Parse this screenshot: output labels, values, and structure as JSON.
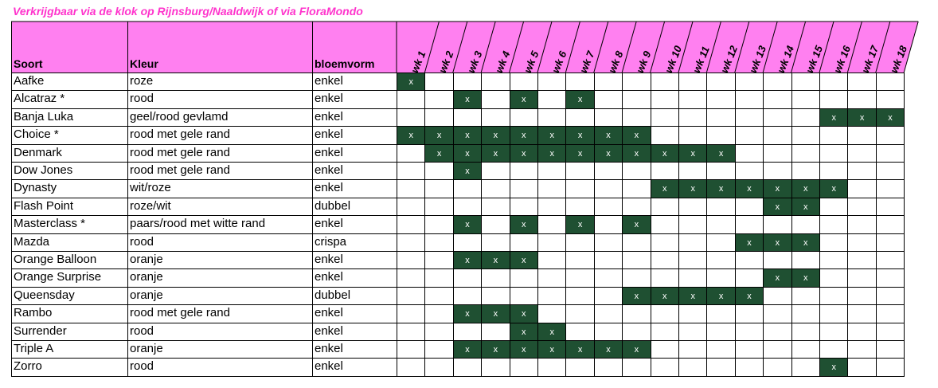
{
  "title": "Verkrijgbaar via de klok op Rijnsburg/Naaldwijk of via FloraMondo",
  "columns": {
    "soort": "Soort",
    "kleur": "Kleur",
    "bloemvorm": "bloemvorm"
  },
  "weeks": [
    "wk 1",
    "wk 2",
    "wk 3",
    "wk 4",
    "wk 5",
    "wk 6",
    "wk 7",
    "wk 8",
    "wk 9",
    "wk 10",
    "wk 11",
    "wk 12",
    "wk 13",
    "wk 14",
    "wk 15",
    "wk 16",
    "wk 17",
    "wk 18"
  ],
  "mark_symbol": "x",
  "colors": {
    "header_bg": "#ff80f0",
    "title": "#ff33cc",
    "mark_bg": "#1f5032",
    "mark_text": "#ffffff"
  },
  "rows": [
    {
      "soort": "Aafke",
      "kleur": "roze",
      "bloemvorm": "enkel",
      "weeks": [
        1
      ]
    },
    {
      "soort": "Alcatraz *",
      "kleur": "rood",
      "bloemvorm": "enkel",
      "weeks": [
        3,
        5,
        7
      ]
    },
    {
      "soort": "Banja Luka",
      "kleur": "geel/rood gevlamd",
      "bloemvorm": "enkel",
      "weeks": [
        16,
        17,
        18
      ]
    },
    {
      "soort": "Choice *",
      "kleur": "rood met gele rand",
      "bloemvorm": "enkel",
      "weeks": [
        1,
        2,
        3,
        4,
        5,
        6,
        7,
        8,
        9
      ]
    },
    {
      "soort": "Denmark",
      "kleur": "rood met gele rand",
      "bloemvorm": "enkel",
      "weeks": [
        2,
        3,
        4,
        5,
        6,
        7,
        8,
        9,
        10,
        11,
        12
      ]
    },
    {
      "soort": "Dow Jones",
      "kleur": "rood met gele rand",
      "bloemvorm": "enkel",
      "weeks": [
        3
      ]
    },
    {
      "soort": "Dynasty",
      "kleur": "wit/roze",
      "bloemvorm": "enkel",
      "weeks": [
        10,
        11,
        12,
        13,
        14,
        15,
        16
      ]
    },
    {
      "soort": "Flash Point",
      "kleur": "roze/wit",
      "bloemvorm": "dubbel",
      "weeks": [
        14,
        15
      ]
    },
    {
      "soort": "Masterclass *",
      "kleur": "paars/rood met witte rand",
      "bloemvorm": "enkel",
      "weeks": [
        3,
        5,
        7,
        9
      ]
    },
    {
      "soort": "Mazda",
      "kleur": "rood",
      "bloemvorm": "crispa",
      "weeks": [
        13,
        14,
        15
      ]
    },
    {
      "soort": "Orange Balloon",
      "kleur": "oranje",
      "bloemvorm": "enkel",
      "weeks": [
        3,
        4,
        5
      ]
    },
    {
      "soort": "Orange Surprise",
      "kleur": "oranje",
      "bloemvorm": "enkel",
      "weeks": [
        14,
        15
      ]
    },
    {
      "soort": "Queensday",
      "kleur": "oranje",
      "bloemvorm": "dubbel",
      "weeks": [
        9,
        10,
        11,
        12,
        13
      ]
    },
    {
      "soort": "Rambo",
      "kleur": "rood met gele rand",
      "bloemvorm": "enkel",
      "weeks": [
        3,
        4,
        5
      ]
    },
    {
      "soort": "Surrender",
      "kleur": "rood",
      "bloemvorm": "enkel",
      "weeks": [
        5,
        6
      ]
    },
    {
      "soort": "Triple A",
      "kleur": "oranje",
      "bloemvorm": "enkel",
      "weeks": [
        3,
        4,
        5,
        6,
        7,
        8,
        9
      ]
    },
    {
      "soort": "Zorro",
      "kleur": "rood",
      "bloemvorm": "enkel",
      "weeks": [
        16
      ]
    }
  ]
}
